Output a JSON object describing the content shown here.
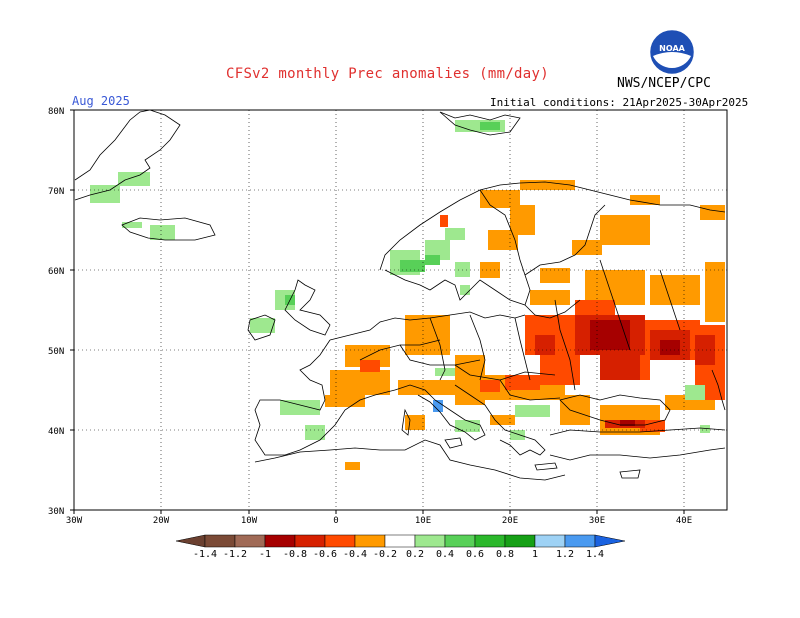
{
  "title": "CFSv2 monthly Prec anomalies (mm/day)",
  "agency": "NWS/NCEP/CPC",
  "logo_text": "NOAA",
  "valid_month": "Aug 2025",
  "initial_conditions": "Initial conditions: 21Apr2025-30Apr2025",
  "axes": {
    "lon_labels": [
      "30W",
      "20W",
      "10W",
      "0",
      "10E",
      "20E",
      "30E",
      "40E"
    ],
    "lat_labels": [
      "80N",
      "70N",
      "60N",
      "50N",
      "40N",
      "30N"
    ],
    "lon_range": [
      -30,
      45
    ],
    "lat_range": [
      30,
      80
    ],
    "grid": "dotted"
  },
  "colorbar": {
    "labels": [
      "-1.4",
      "-1.2",
      "-1",
      "-0.8",
      "-0.6",
      "-0.4",
      "-0.2",
      "0.2",
      "0.4",
      "0.6",
      "0.8",
      "1",
      "1.2",
      "1.4"
    ],
    "colors": [
      "#7b4a36",
      "#a06a56",
      "#c49a8b",
      "#a60000",
      "#d62000",
      "#ff4a00",
      "#ff9a00",
      "#ffffff",
      "#9ee88f",
      "#58d058",
      "#2bb82b",
      "#16a016",
      "#9ed2f5",
      "#4a9af0",
      "#1a62e0"
    ],
    "left_end_color": "#6b4030",
    "right_end_color": "#1a62e0"
  },
  "colors": {
    "light_orange": "#ff9a00",
    "orange_red": "#ff4a00",
    "red": "#d62000",
    "dark_red": "#a60000",
    "light_green": "#9ee88f",
    "green": "#58d058",
    "blue": "#4a9af0",
    "coastline": "#000000"
  }
}
